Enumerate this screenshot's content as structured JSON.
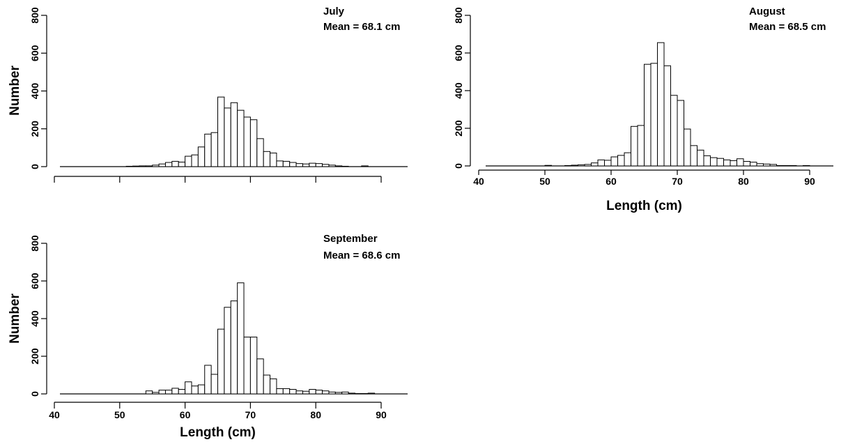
{
  "chart_data": [
    {
      "type": "bar",
      "title": "July",
      "annotation": "Mean = 68.1 cm",
      "xlabel": "",
      "ylabel": "Number",
      "xlim": [
        40,
        94
      ],
      "ylim": [
        0,
        800
      ],
      "xticks": [
        40,
        50,
        60,
        70,
        80,
        90
      ],
      "show_xtick_labels": false,
      "yticks": [
        0,
        200,
        400,
        600,
        800
      ],
      "bin_width": 1,
      "x": [
        41,
        42,
        43,
        44,
        45,
        46,
        47,
        48,
        49,
        50,
        51,
        52,
        53,
        54,
        55,
        56,
        57,
        58,
        59,
        60,
        61,
        62,
        63,
        64,
        65,
        66,
        67,
        68,
        69,
        70,
        71,
        72,
        73,
        74,
        75,
        76,
        77,
        78,
        79,
        80,
        81,
        82,
        83,
        84,
        85,
        86,
        87,
        88,
        89,
        90,
        91,
        92
      ],
      "values": [
        0,
        0,
        0,
        0,
        0,
        0,
        0,
        0,
        0,
        0,
        0,
        2,
        3,
        4,
        4,
        8,
        14,
        22,
        28,
        24,
        55,
        62,
        104,
        172,
        180,
        368,
        310,
        338,
        298,
        262,
        248,
        148,
        80,
        72,
        30,
        28,
        22,
        16,
        14,
        18,
        16,
        12,
        8,
        4,
        2,
        0,
        0,
        4,
        0,
        0,
        0,
        0
      ]
    },
    {
      "type": "bar",
      "title": "August",
      "annotation": "Mean = 68.5 cm",
      "xlabel": "Length (cm)",
      "ylabel": "",
      "xlim": [
        40,
        94
      ],
      "ylim": [
        0,
        800
      ],
      "xticks": [
        40,
        50,
        60,
        70,
        80,
        90
      ],
      "show_xtick_labels": true,
      "yticks": [
        0,
        200,
        400,
        600,
        800
      ],
      "bin_width": 1,
      "x": [
        41,
        42,
        43,
        44,
        45,
        46,
        47,
        48,
        49,
        50,
        51,
        52,
        53,
        54,
        55,
        56,
        57,
        58,
        59,
        60,
        61,
        62,
        63,
        64,
        65,
        66,
        67,
        68,
        69,
        70,
        71,
        72,
        73,
        74,
        75,
        76,
        77,
        78,
        79,
        80,
        81,
        82,
        83,
        84,
        85,
        86,
        87,
        88,
        89,
        90,
        91,
        92
      ],
      "values": [
        0,
        0,
        0,
        0,
        0,
        0,
        0,
        0,
        0,
        0,
        3,
        0,
        0,
        2,
        4,
        6,
        8,
        16,
        32,
        30,
        48,
        56,
        70,
        210,
        215,
        540,
        545,
        655,
        532,
        375,
        348,
        196,
        108,
        84,
        54,
        44,
        40,
        32,
        28,
        38,
        24,
        20,
        12,
        10,
        8,
        2,
        2,
        2,
        0,
        2,
        0,
        0
      ]
    },
    {
      "type": "bar",
      "title": "September",
      "annotation": "Mean = 68.6 cm",
      "xlabel": "Length (cm)",
      "ylabel": "Number",
      "xlim": [
        40,
        94
      ],
      "ylim": [
        0,
        800
      ],
      "xticks": [
        40,
        50,
        60,
        70,
        80,
        90
      ],
      "show_xtick_labels": true,
      "yticks": [
        0,
        200,
        400,
        600,
        800
      ],
      "bin_width": 1,
      "x": [
        41,
        42,
        43,
        44,
        45,
        46,
        47,
        48,
        49,
        50,
        51,
        52,
        53,
        54,
        55,
        56,
        57,
        58,
        59,
        60,
        61,
        62,
        63,
        64,
        65,
        66,
        67,
        68,
        69,
        70,
        71,
        72,
        73,
        74,
        75,
        76,
        77,
        78,
        79,
        80,
        81,
        82,
        83,
        84,
        85,
        86,
        87,
        88,
        89,
        90,
        91,
        92
      ],
      "values": [
        0,
        0,
        0,
        0,
        0,
        0,
        0,
        0,
        0,
        0,
        0,
        0,
        0,
        0,
        16,
        8,
        20,
        20,
        30,
        24,
        64,
        42,
        48,
        152,
        104,
        344,
        460,
        494,
        590,
        302,
        302,
        186,
        100,
        80,
        28,
        28,
        24,
        16,
        14,
        24,
        20,
        16,
        10,
        8,
        10,
        4,
        2,
        2,
        4,
        0,
        0,
        0
      ]
    }
  ]
}
